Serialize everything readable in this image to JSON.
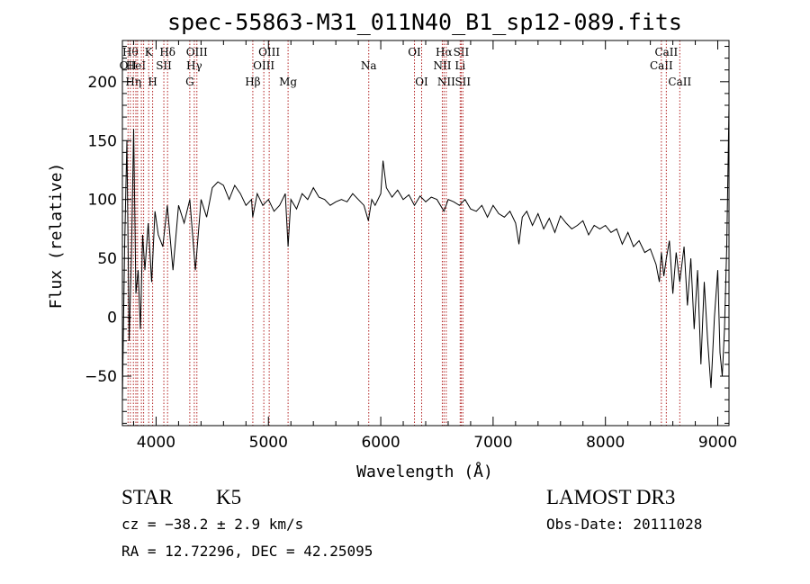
{
  "chart_data": {
    "type": "line",
    "title": "spec-55863-M31_011N40_B1_sp12-089.fits",
    "xlabel": "Wavelength (Å)",
    "ylabel": "Flux (relative)",
    "xlim": [
      3700,
      9100
    ],
    "ylim": [
      -92,
      235
    ],
    "xticks": [
      4000,
      5000,
      6000,
      7000,
      8000,
      9000
    ],
    "yticks": [
      -50,
      0,
      50,
      100,
      150,
      200
    ],
    "grid": false,
    "line_color": "#000000",
    "marker_color": "#b22222",
    "series": [
      {
        "x": [
          3700,
          3720,
          3740,
          3760,
          3780,
          3800,
          3820,
          3840,
          3860,
          3880,
          3900,
          3930,
          3960,
          3990,
          4020,
          4060,
          4100,
          4150,
          4200,
          4250,
          4300,
          4350,
          4400,
          4450,
          4500,
          4550,
          4600,
          4650,
          4700,
          4750,
          4800,
          4850,
          4860,
          4900,
          4950,
          5000,
          5050,
          5100,
          5150,
          5175,
          5200,
          5250,
          5300,
          5350,
          5400,
          5450,
          5500,
          5550,
          5600,
          5650,
          5700,
          5750,
          5800,
          5850,
          5890,
          5920,
          5950,
          6000,
          6020,
          6050,
          6100,
          6150,
          6200,
          6250,
          6300,
          6350,
          6400,
          6450,
          6500,
          6563,
          6600,
          6650,
          6700,
          6750,
          6800,
          6850,
          6900,
          6950,
          7000,
          7050,
          7100,
          7150,
          7200,
          7230,
          7260,
          7300,
          7350,
          7400,
          7450,
          7500,
          7550,
          7600,
          7650,
          7700,
          7750,
          7800,
          7850,
          7900,
          7950,
          8000,
          8050,
          8100,
          8150,
          8200,
          8250,
          8300,
          8350,
          8400,
          8450,
          8480,
          8498,
          8520,
          8542,
          8570,
          8600,
          8630,
          8662,
          8700,
          8730,
          8760,
          8790,
          8820,
          8850,
          8880,
          8910,
          8940,
          8970,
          9000,
          9020,
          9040,
          9060,
          9080,
          9100
        ],
        "y": [
          -70,
          60,
          150,
          -20,
          50,
          160,
          20,
          40,
          -10,
          70,
          40,
          80,
          30,
          90,
          70,
          60,
          95,
          40,
          95,
          80,
          100,
          40,
          100,
          85,
          110,
          115,
          112,
          100,
          112,
          105,
          95,
          100,
          85,
          105,
          95,
          100,
          90,
          95,
          105,
          60,
          100,
          92,
          105,
          100,
          110,
          102,
          100,
          95,
          98,
          100,
          98,
          105,
          100,
          95,
          82,
          100,
          95,
          105,
          133,
          110,
          102,
          108,
          100,
          104,
          95,
          103,
          98,
          102,
          100,
          90,
          100,
          98,
          95,
          100,
          92,
          90,
          95,
          85,
          95,
          88,
          85,
          90,
          80,
          62,
          85,
          90,
          78,
          88,
          75,
          84,
          72,
          86,
          80,
          75,
          78,
          82,
          70,
          78,
          75,
          78,
          72,
          75,
          62,
          72,
          60,
          65,
          55,
          58,
          45,
          30,
          55,
          35,
          50,
          65,
          20,
          55,
          30,
          60,
          10,
          50,
          -10,
          40,
          -40,
          30,
          -20,
          -60,
          0,
          40,
          -30,
          -50,
          -10,
          60,
          180
        ]
      }
    ],
    "markers": [
      {
        "x": 3750,
        "label": "OII",
        "row": 2
      },
      {
        "x": 3771,
        "label": "Hθ",
        "row": 1
      },
      {
        "x": 3798,
        "label": "Hη",
        "row": 3
      },
      {
        "x": 3820,
        "label": "HeI",
        "row": 2
      },
      {
        "x": 3835,
        "label": "",
        "row": 0
      },
      {
        "x": 3869,
        "label": "",
        "row": 0
      },
      {
        "x": 3889,
        "label": "",
        "row": 0
      },
      {
        "x": 3934,
        "label": "K",
        "row": 1
      },
      {
        "x": 3969,
        "label": "H",
        "row": 3
      },
      {
        "x": 4069,
        "label": "SII",
        "row": 2
      },
      {
        "x": 4102,
        "label": "Hδ",
        "row": 1
      },
      {
        "x": 4300,
        "label": "G",
        "row": 3
      },
      {
        "x": 4340,
        "label": "Hγ",
        "row": 2
      },
      {
        "x": 4363,
        "label": "OIII",
        "row": 1
      },
      {
        "x": 4861,
        "label": "Hβ",
        "row": 3
      },
      {
        "x": 4959,
        "label": "OIII",
        "row": 2
      },
      {
        "x": 5007,
        "label": "OIII",
        "row": 1
      },
      {
        "x": 5175,
        "label": "Mg",
        "row": 3
      },
      {
        "x": 5893,
        "label": "Na",
        "row": 2
      },
      {
        "x": 6300,
        "label": "OI",
        "row": 1
      },
      {
        "x": 6364,
        "label": "OI",
        "row": 3
      },
      {
        "x": 6548,
        "label": "NII",
        "row": 2
      },
      {
        "x": 6563,
        "label": "Hα",
        "row": 1
      },
      {
        "x": 6583,
        "label": "NII",
        "row": 3
      },
      {
        "x": 6707,
        "label": "Li",
        "row": 2
      },
      {
        "x": 6716,
        "label": "SII",
        "row": 1
      },
      {
        "x": 6731,
        "label": "SII",
        "row": 3
      },
      {
        "x": 8498,
        "label": "CaII",
        "row": 2
      },
      {
        "x": 8542,
        "label": "CaII",
        "row": 1
      },
      {
        "x": 8662,
        "label": "CaII",
        "row": 3
      }
    ]
  },
  "info": {
    "class_label": "STAR",
    "subclass": "K5",
    "survey": "LAMOST DR3",
    "redshift": "cz = −38.2 ± 2.9 km/s",
    "obs_date": "Obs-Date: 20111028",
    "coords": "RA =  12.72296, DEC =  42.25095"
  }
}
